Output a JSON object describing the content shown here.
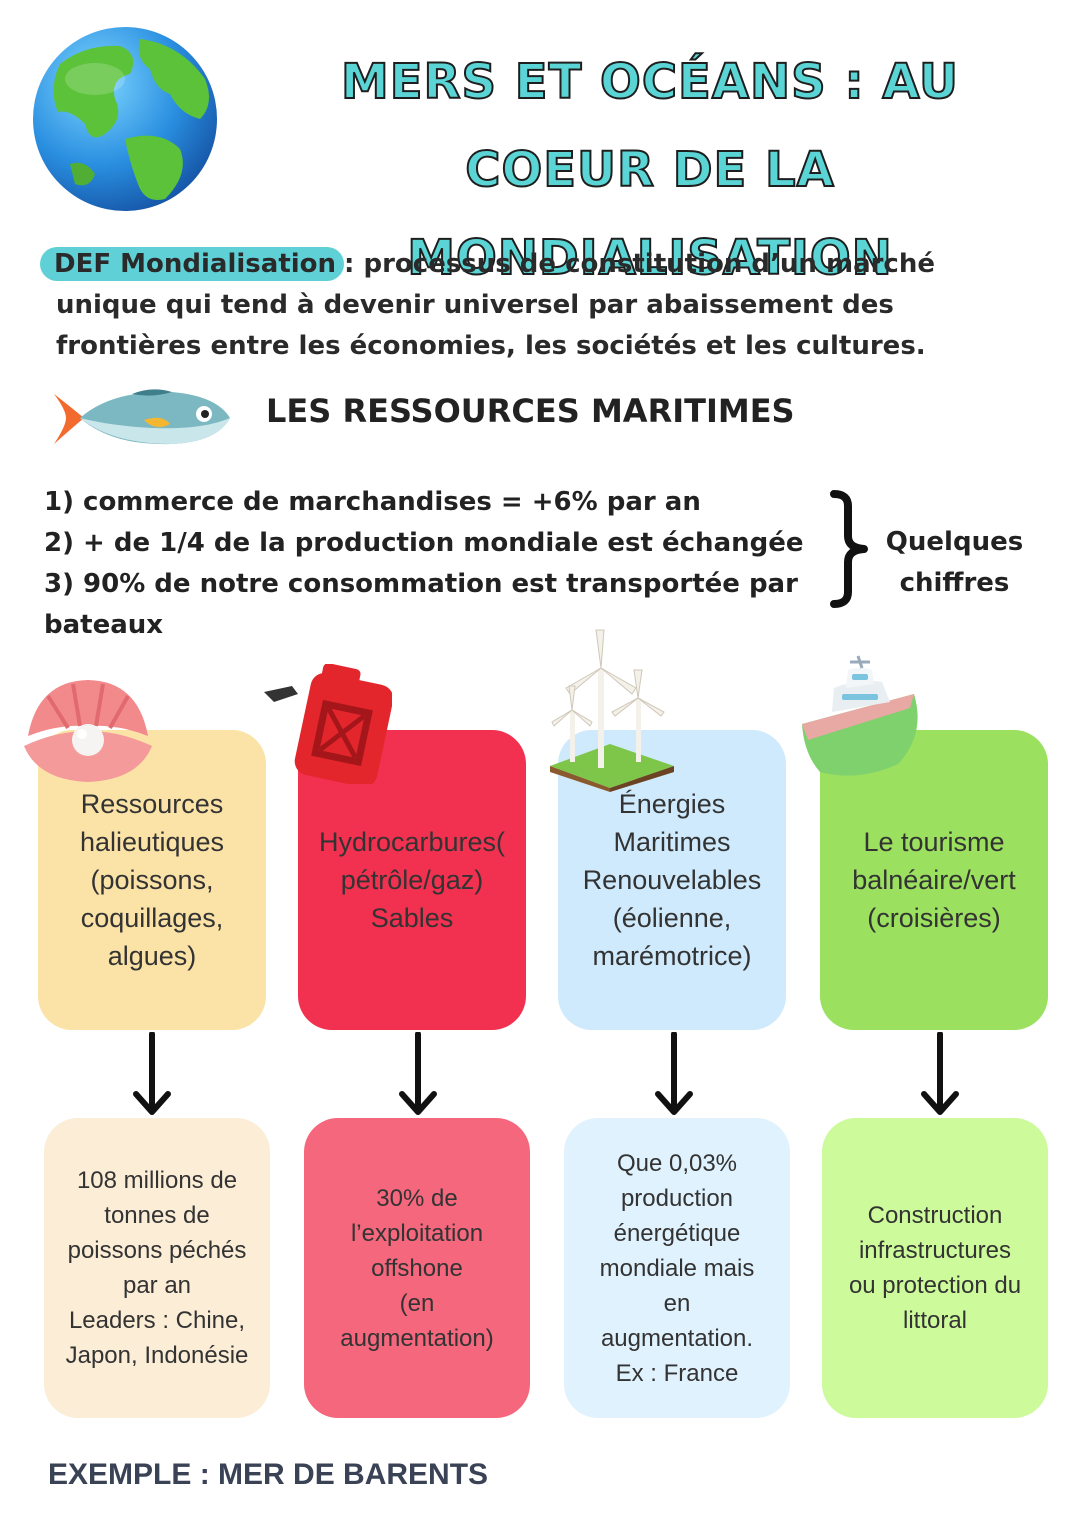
{
  "title": {
    "line1": "MERS ET OCÉANS : AU COEUR DE LA",
    "line2": "MONDIALISATION"
  },
  "definition": {
    "tag": "DEF Mondialisation",
    "line1": ": processus de constitution d’un marché",
    "line2": "unique qui tend à devenir universel par abaissement des",
    "line3": "frontières entre les économies, les sociétés et les cultures."
  },
  "section_title": "LES RESSOURCES MARITIMES",
  "figures": {
    "items": [
      "1) commerce de marchandises = +6% par an",
      "2) + de 1/4 de la production mondiale est échangée",
      "3) 90% de notre consommation est transportée par",
      "bateaux"
    ],
    "side_label_line1": "Quelques",
    "side_label_line2": "chiffres"
  },
  "cards": [
    {
      "top": "Ressources\nhalieutiques\n(poissons,\ncoquillages,\nalgues)",
      "bottom": "108 millions de\ntonnes de\npoissons péchés\npar an\nLeaders : Chine,\nJapon, Indonésie",
      "top_color": "#fbe3a7",
      "bottom_color": "#fbedd6"
    },
    {
      "top": "Hydrocarbures(\npétrôle/gaz)\nSables",
      "bottom": "30% de\nl’exploitation\noffshone\n(en\naugmentation)",
      "top_color": "#f2304f",
      "bottom_color": "#f4677c"
    },
    {
      "top": "Énergies\nMaritimes\nRenouvelables\n(éolienne,\nmarémotrice)",
      "bottom": "Que 0,03%\nproduction\nénergétique\nmondiale mais\nen\naugmentation.\nEx : France",
      "top_color": "#cfeafc",
      "bottom_color": "#e0f2fd"
    },
    {
      "top": "Le tourisme\nbalnéaire/vert\n(croisières)",
      "bottom": "Construction\ninfrastructures\nou protection du\nlittoral",
      "top_color": "#9be05f",
      "bottom_color": "#cdfa9b"
    }
  ],
  "example": "EXEMPLE : MER DE BARENTS",
  "icons": [
    "globe-icon",
    "fish-icon",
    "shell-pearl-icon",
    "jerrycan-icon",
    "wind-turbines-icon",
    "boat-icon"
  ]
}
